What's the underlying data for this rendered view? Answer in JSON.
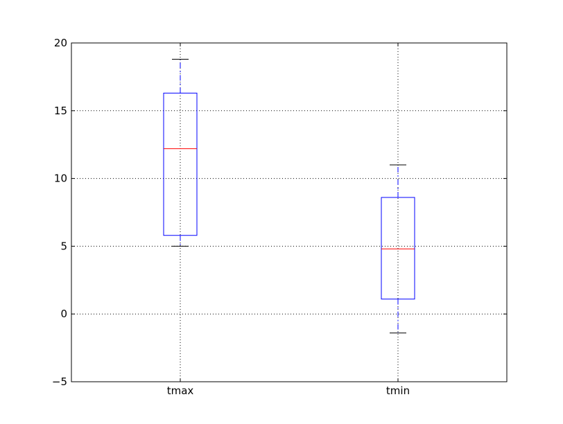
{
  "chart_data": {
    "type": "box",
    "title": "",
    "xlabel": "",
    "ylabel": "",
    "categories": [
      "tmax",
      "tmin"
    ],
    "ylim": [
      -5,
      20
    ],
    "yticks": [
      -5,
      0,
      5,
      10,
      15,
      20
    ],
    "ytick_labels": [
      "−5",
      "0",
      "5",
      "10",
      "15",
      "20"
    ],
    "grid": true,
    "series": [
      {
        "category": "tmax",
        "whisker_low": 5.0,
        "q1": 5.8,
        "median": 12.2,
        "q3": 16.3,
        "whisker_high": 18.8
      },
      {
        "category": "tmin",
        "whisker_low": -1.4,
        "q1": 1.1,
        "median": 4.8,
        "q3": 8.6,
        "whisker_high": 11.0
      }
    ],
    "colors": {
      "box": "#0000ff",
      "whisker": "#0000ff",
      "median": "#ff0000",
      "cap": "#000000",
      "grid": "#000000",
      "axes": "#000000"
    }
  }
}
